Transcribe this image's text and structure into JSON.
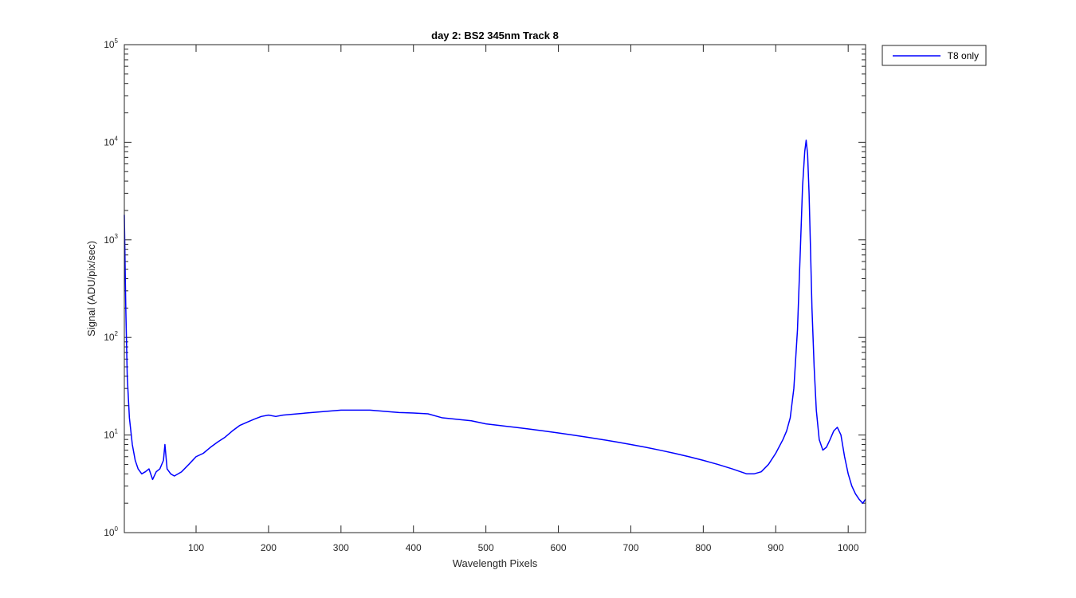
{
  "chart_data": {
    "type": "line",
    "title": "day 2: BS2  345nm  Track 8",
    "xlabel": "Wavelength Pixels",
    "ylabel": "Signal (ADU/pix/sec)",
    "xlim": [
      1,
      1024
    ],
    "ylim": [
      1,
      100000
    ],
    "yscale": "log",
    "grid": false,
    "legend_position": "outside-top-right",
    "x_ticks": [
      100,
      200,
      300,
      400,
      500,
      600,
      700,
      800,
      900,
      1000
    ],
    "x_tick_labels": [
      "100",
      "200",
      "300",
      "400",
      "500",
      "600",
      "700",
      "800",
      "900",
      "1000"
    ],
    "y_ticks": [
      1,
      10,
      100,
      1000,
      10000,
      100000
    ],
    "y_tick_labels": [
      {
        "base": "10",
        "exp": "0"
      },
      {
        "base": "10",
        "exp": "1"
      },
      {
        "base": "10",
        "exp": "2"
      },
      {
        "base": "10",
        "exp": "3"
      },
      {
        "base": "10",
        "exp": "4"
      },
      {
        "base": "10",
        "exp": "5"
      }
    ],
    "series": [
      {
        "name": "T8 only",
        "color": "#0000ff",
        "x": [
          1,
          3,
          5,
          8,
          12,
          16,
          20,
          25,
          30,
          35,
          40,
          45,
          50,
          55,
          57,
          60,
          65,
          70,
          80,
          90,
          100,
          110,
          120,
          130,
          140,
          150,
          160,
          170,
          180,
          190,
          200,
          210,
          220,
          240,
          260,
          280,
          300,
          320,
          340,
          360,
          380,
          400,
          420,
          440,
          460,
          480,
          500,
          520,
          540,
          560,
          580,
          600,
          620,
          640,
          660,
          680,
          700,
          720,
          740,
          760,
          780,
          800,
          820,
          840,
          860,
          870,
          880,
          890,
          900,
          910,
          915,
          920,
          925,
          930,
          934,
          937,
          940,
          942,
          944,
          946,
          948,
          950,
          953,
          956,
          960,
          965,
          970,
          975,
          980,
          985,
          990,
          995,
          1000,
          1005,
          1010,
          1015,
          1020,
          1024
        ],
        "y": [
          1800,
          200,
          40,
          15,
          8,
          5.5,
          4.5,
          4,
          4.2,
          4.5,
          3.5,
          4.2,
          4.5,
          5.5,
          8,
          4.5,
          4,
          3.8,
          4.2,
          5,
          6,
          6.5,
          7.5,
          8.5,
          9.5,
          11,
          12.5,
          13.5,
          14.5,
          15.5,
          16,
          15.5,
          16,
          16.5,
          17,
          17.5,
          18,
          18,
          18,
          17.5,
          17,
          16.8,
          16.5,
          15,
          14.5,
          14,
          13,
          12.5,
          12,
          11.5,
          11,
          10.5,
          10,
          9.5,
          9,
          8.5,
          8,
          7.5,
          7,
          6.5,
          6,
          5.5,
          5,
          4.5,
          4,
          4,
          4.2,
          5,
          6.5,
          9,
          11,
          15,
          30,
          120,
          800,
          3500,
          8000,
          10500,
          7500,
          3000,
          800,
          200,
          50,
          18,
          9,
          7,
          7.5,
          9,
          11,
          12,
          10,
          6,
          4,
          3,
          2.5,
          2.2,
          2,
          2.2
        ]
      }
    ]
  }
}
